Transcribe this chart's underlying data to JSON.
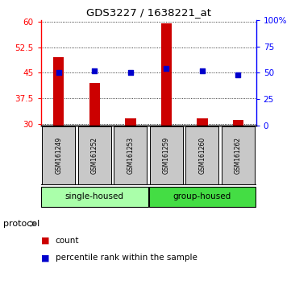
{
  "title": "GDS3227 / 1638221_at",
  "categories": [
    "GSM161249",
    "GSM161252",
    "GSM161253",
    "GSM161259",
    "GSM161260",
    "GSM161262"
  ],
  "bar_values": [
    49.5,
    42.0,
    31.5,
    59.5,
    31.5,
    31.0
  ],
  "bar_bottom": 29.5,
  "blue_percentile": [
    50,
    52,
    50,
    54,
    52,
    48
  ],
  "bar_color": "#cc0000",
  "blue_color": "#0000cc",
  "ylim_left": [
    29.5,
    60.5
  ],
  "ylim_right": [
    0,
    100
  ],
  "yticks_left": [
    30,
    37.5,
    45,
    52.5,
    60
  ],
  "ytick_labels_left": [
    "30",
    "37.5",
    "45",
    "52.5",
    "60"
  ],
  "yticks_right": [
    0,
    25,
    50,
    75,
    100
  ],
  "ytick_labels_right": [
    "0",
    "25",
    "50",
    "75",
    "100%"
  ],
  "groups": [
    {
      "label": "single-housed",
      "indices": [
        0,
        1,
        2
      ],
      "color": "#aaffaa"
    },
    {
      "label": "group-housed",
      "indices": [
        3,
        4,
        5
      ],
      "color": "#44dd44"
    }
  ],
  "protocol_label": "protocol",
  "legend_count": "count",
  "legend_percentile": "percentile rank within the sample",
  "background_sample": "#c8c8c8",
  "fig_width": 3.61,
  "fig_height": 3.54
}
